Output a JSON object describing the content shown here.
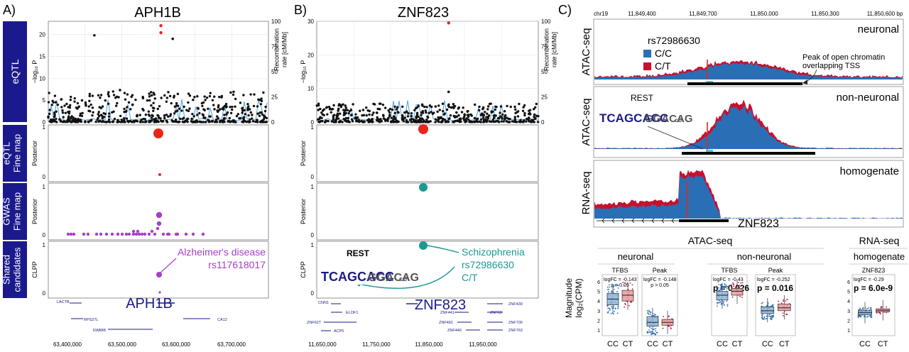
{
  "colors": {
    "navy": "#1a1a8c",
    "red": "#e8251b",
    "purple": "#a93cc8",
    "teal": "#1a9a93",
    "blue_track": "#2a6fb5",
    "red_track": "#c8102e",
    "recomb": "#4aa3df",
    "box_cc": "#8fb6d9",
    "box_ct": "#e79a9e"
  },
  "panel_a": {
    "letter": "A)",
    "title": "APH1B",
    "row_labels": [
      "eQTL",
      "eQTL\nFine map",
      "GWAS\nFine map",
      "Shared\ncandidates"
    ],
    "yaxis_eqtl": "−log₁₀ P",
    "yaxis_recomb": "Recombination\nrate [cM/Mb]",
    "yaxis_posterior": "Posterior",
    "yaxis_clpp": "CLPP",
    "annotation_disease": "Alzheimer's disease",
    "annotation_snp": "rs117618017",
    "gene_label": "APH1B",
    "genes": [
      "LACTB",
      "RPS27L",
      "RAB8B",
      "CA12"
    ],
    "x_ticks": [
      "63,400,000",
      "63,500,000",
      "63,600,000",
      "63,700,000"
    ]
  },
  "panel_b": {
    "letter": "B)",
    "title": "ZNF823",
    "yaxis_eqtl": "−log₁₀ P",
    "yaxis_recomb": "Recombination\nrate [cM/Mb]",
    "yaxis_posterior": "Posterior",
    "yaxis_clpp": "CLPP",
    "motif_label": "REST",
    "annotation_disease": "Schizophrenia",
    "annotation_snp": "rs72986630",
    "annotation_allele": "C/T",
    "gene_label": "ZNF823",
    "genes": [
      "CNN1",
      "ELOF1",
      "ZNF627",
      "ACP5",
      "ZNF441",
      "ZNF491",
      "ZNF440",
      "ZNF439",
      "ZNF69",
      "ZNF700",
      "ZNF763"
    ],
    "x_ticks": [
      "11,650,000",
      "11,750,000",
      "11,850,000",
      "11,950,000"
    ]
  },
  "panel_c": {
    "letter": "C)",
    "chrom": "chr19",
    "x_ticks": [
      "11,849,400",
      "11,849,700",
      "11,850,000",
      "11,850,300",
      "11,850,600 bp"
    ],
    "track_labels": [
      "ATAC-seq",
      "ATAC-seq",
      "RNA-seq"
    ],
    "track_titles": [
      "neuronal",
      "non-neuronal",
      "homogenate"
    ],
    "snp_label": "rs72986630",
    "legend": [
      "C/C",
      "C/T"
    ],
    "peak_note": "Peak of open chromatin\noverlapping TSS",
    "motif_label": "REST",
    "gene_label": "ZNF823",
    "box_header_atac": "ATAC-seq",
    "box_header_rna": "RNA-seq",
    "box_groups": [
      "neuronal",
      "non-neuronal",
      "homogenate"
    ],
    "box_yaxis": "Magnitude\nlog₂(CPM)",
    "box_y_ticks": [
      "1",
      "2",
      "3",
      "4",
      "5",
      "6"
    ],
    "box_categories": [
      "CC",
      "CT"
    ]
  },
  "chart_data": [
    {
      "type": "scatter",
      "title": "APH1B",
      "ylabel": "−log10 P",
      "xlim": [
        63350000,
        63780000
      ],
      "ylim": [
        0,
        23
      ],
      "y_ticks": [
        0,
        5,
        10,
        15,
        20
      ],
      "secondary_ylabel": "Recombination rate [cM/Mb]",
      "secondary_ylim": [
        0,
        100
      ],
      "secondary_ticks": [
        0,
        25,
        50,
        75,
        100
      ],
      "lead_variant": {
        "x": 63570000,
        "y": 21.2
      },
      "highlight_points": [
        {
          "x": 63570000,
          "y": 22.0
        },
        {
          "x": 63570000,
          "y": 20.4
        }
      ],
      "notable_points": [
        {
          "x": 63440000,
          "y": 19.8
        },
        {
          "x": 63593000,
          "y": 19.0
        },
        {
          "x": 63490000,
          "y": 7.3
        },
        {
          "x": 63557000,
          "y": 6.3
        }
      ]
    },
    {
      "type": "scatter",
      "title": "eQTL Fine map (APH1B)",
      "ylabel": "Posterior",
      "ylim": [
        0,
        1
      ],
      "y_ticks": [
        0,
        1
      ],
      "points": [
        {
          "x": 63570000,
          "y": 0.9,
          "size": "large"
        },
        {
          "x": 63570000,
          "y": 0.04,
          "size": "small"
        }
      ]
    },
    {
      "type": "scatter",
      "title": "GWAS Fine map (APH1B)",
      "ylabel": "Posterior",
      "ylim": [
        0,
        1
      ],
      "y_ticks": [
        0,
        1
      ],
      "points": [
        {
          "x": 63570000,
          "y": 0.4
        },
        {
          "x": 63570000,
          "y": 0.25
        },
        {
          "x": 63590000,
          "y": 0.03
        },
        {
          "x": 63600000,
          "y": 0.03
        }
      ]
    },
    {
      "type": "scatter",
      "title": "Shared candidates (APH1B)",
      "ylabel": "CLPP",
      "ylim": [
        0,
        1
      ],
      "y_ticks": [
        0,
        1
      ],
      "points": [
        {
          "x": 63570000,
          "y": 0.38
        },
        {
          "x": 63570000,
          "y": 0.03
        }
      ]
    },
    {
      "type": "scatter",
      "title": "ZNF823",
      "ylabel": "−log10 P",
      "xlim": [
        11600000,
        12020000
      ],
      "ylim": [
        0,
        30
      ],
      "y_ticks": [
        0,
        10,
        20,
        30
      ],
      "secondary_ylim": [
        0,
        100
      ],
      "secondary_ticks": [
        0,
        25,
        50,
        75,
        100
      ],
      "lead_variant": {
        "x": 11850000,
        "y": 29.5
      },
      "notable_points": [
        {
          "x": 11800000,
          "y": 5.2
        },
        {
          "x": 11850000,
          "y": 9.0
        }
      ]
    },
    {
      "type": "scatter",
      "title": "eQTL Fine map (ZNF823)",
      "ylabel": "Posterior",
      "ylim": [
        0,
        1
      ],
      "y_ticks": [
        0,
        1
      ],
      "points": [
        {
          "x": 11850000,
          "y": 0.95
        }
      ]
    },
    {
      "type": "scatter",
      "title": "GWAS Fine map (ZNF823)",
      "ylabel": "Posterior",
      "ylim": [
        0,
        1
      ],
      "y_ticks": [
        0,
        1
      ],
      "points": [
        {
          "x": 11850000,
          "y": 0.93
        }
      ]
    },
    {
      "type": "scatter",
      "title": "Shared candidates (ZNF823)",
      "ylabel": "CLPP",
      "ylim": [
        0,
        1
      ],
      "y_ticks": [
        0,
        1
      ],
      "points": [
        {
          "x": 11850000,
          "y": 0.95
        }
      ]
    },
    {
      "type": "box",
      "title": "ATAC-seq neuronal TFBS",
      "categories": [
        "CC",
        "CT"
      ],
      "stat1": "logFC = -0.143",
      "stat2": "p > 0.05",
      "medians": [
        4.2,
        4.6
      ],
      "q1": [
        3.6,
        4.0
      ],
      "q3": [
        4.8,
        5.1
      ]
    },
    {
      "type": "box",
      "title": "ATAC-seq neuronal Peak",
      "categories": [
        "CC",
        "CT"
      ],
      "stat1": "logFC = -0.148",
      "stat2": "p > 0.05",
      "medians": [
        1.8,
        1.8
      ],
      "q1": [
        1.4,
        1.5
      ],
      "q3": [
        2.4,
        2.1
      ]
    },
    {
      "type": "box",
      "title": "ATAC-seq non-neuronal TFBS",
      "categories": [
        "CC",
        "CT"
      ],
      "stat1": "logFC = -0.43",
      "stat2": "p = 0.026",
      "medians": [
        4.6,
        5.0
      ],
      "q1": [
        4.1,
        4.6
      ],
      "q3": [
        5.0,
        5.3
      ]
    },
    {
      "type": "box",
      "title": "ATAC-seq non-neuronal Peak",
      "categories": [
        "CC",
        "CT"
      ],
      "stat1": "logFC = -0.252",
      "stat2": "p = 0.016",
      "medians": [
        3.0,
        3.3
      ],
      "q1": [
        2.7,
        3.0
      ],
      "q3": [
        3.4,
        3.7
      ]
    },
    {
      "type": "box",
      "title": "RNA-seq homogenate ZNF823",
      "categories": [
        "CC",
        "CT"
      ],
      "stat1": "logFC = -0.29",
      "stat2": "p = 6.0e-9",
      "medians": [
        2.8,
        3.05
      ],
      "q1": [
        2.6,
        2.9
      ],
      "q3": [
        3.0,
        3.2
      ]
    }
  ]
}
